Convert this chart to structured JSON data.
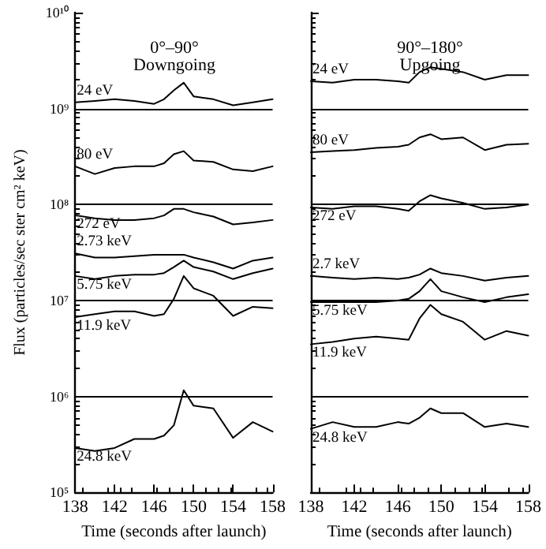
{
  "chart_data": [
    {
      "type": "line",
      "title": "0°–90°\nDowngoing",
      "xlabel": "Time (seconds after launch)",
      "ylabel": "Flux (particles/sec ster cm² keV)",
      "log": "y",
      "x": [
        138,
        140,
        142,
        144,
        146,
        147,
        148,
        149,
        150,
        152,
        154,
        156,
        158
      ],
      "xlim": [
        138,
        158
      ],
      "xticks": [
        138,
        142,
        146,
        150,
        154,
        158
      ],
      "ylim": [
        100000,
        10000000000
      ],
      "yticks": [
        {
          "value": 100000,
          "label": "10⁵"
        },
        {
          "value": 1000000,
          "label": "10⁶"
        },
        {
          "value": 10000000,
          "label": "10⁷"
        },
        {
          "value": 100000000,
          "label": "10⁸"
        },
        {
          "value": 1000000000,
          "label": "10⁹"
        },
        {
          "value": 10000000000,
          "label": "10¹⁰"
        }
      ],
      "ref_lines": [
        {
          "axis": "y",
          "value": 1000000,
          "color": "#000000"
        },
        {
          "axis": "y",
          "value": 10000000,
          "color": "#000000"
        },
        {
          "axis": "y",
          "value": 100000000,
          "color": "#000000"
        },
        {
          "axis": "y",
          "value": 1000000000,
          "color": "#000000"
        }
      ],
      "series": [
        {
          "name": "24 eV",
          "color": "#000000",
          "values": [
            1160000000.0,
            1200000000.0,
            1250000000.0,
            1200000000.0,
            1120000000.0,
            1250000000.0,
            1550000000.0,
            1860000000.0,
            1340000000.0,
            1250000000.0,
            1080000000.0,
            1160000000.0,
            1250000000.0
          ]
        },
        {
          "name": "80 eV",
          "color": "#000000",
          "values": [
            250000000.0,
            208000000.0,
            240000000.0,
            250000000.0,
            250000000.0,
            269000000.0,
            334000000.0,
            360000000.0,
            288000000.0,
            278000000.0,
            232000000.0,
            223000000.0,
            250000000.0
          ]
        },
        {
          "name": "272 eV",
          "color": "#000000",
          "values": [
            77000000.0,
            72000000.0,
            69000000.0,
            69000000.0,
            72000000.0,
            77000000.0,
            90000000.0,
            90000000.0,
            83000000.0,
            75000000.0,
            62000000.0,
            65000000.0,
            69000000.0
          ]
        },
        {
          "name": "2.73 keV",
          "color": "#000000",
          "values": [
            31000000.0,
            28000000.0,
            28000000.0,
            29000000.0,
            30000000.0,
            30000000.0,
            30000000.0,
            30000000.0,
            28000000.0,
            25000000.0,
            21500000.0,
            26000000.0,
            28000000.0
          ]
        },
        {
          "name": "5.75 keV",
          "color": "#000000",
          "values": [
            18000000.0,
            16700000.0,
            18000000.0,
            18600000.0,
            18600000.0,
            19300000.0,
            22300000.0,
            26000000.0,
            22300000.0,
            20000000.0,
            16700000.0,
            19300000.0,
            21500000.0
          ]
        },
        {
          "name": "11.9 keV",
          "color": "#000000",
          "values": [
            6700000.0,
            7200000.0,
            7700000.0,
            7700000.0,
            6900000.0,
            7200000.0,
            10400000.0,
            18000000.0,
            13400000.0,
            11200000.0,
            6900000.0,
            8600000.0,
            8300000.0
          ]
        },
        {
          "name": "24.8 keV",
          "color": "#000000",
          "values": [
            290000.0,
            270000.0,
            290000.0,
            360000.0,
            360000.0,
            390000.0,
            500000.0,
            1160000.0,
            800000.0,
            750000.0,
            370000.0,
            540000.0,
            430000.0
          ]
        }
      ]
    },
    {
      "type": "line",
      "title": "90°–180°\nUpgoing",
      "xlabel": "Time (seconds after launch)",
      "log": "y",
      "tick_labels": "x",
      "x": [
        138,
        140,
        142,
        144,
        146,
        147,
        148,
        149,
        150,
        152,
        154,
        156,
        158
      ],
      "xlim": [
        138,
        158
      ],
      "xticks": [
        138,
        142,
        146,
        150,
        154,
        158
      ],
      "ylim": [
        100000,
        10000000000
      ],
      "yticks": [
        100000,
        1000000,
        10000000,
        100000000,
        1000000000,
        10000000000
      ],
      "ref_lines": [
        {
          "axis": "y",
          "value": 1000000,
          "color": "#000000"
        },
        {
          "axis": "y",
          "value": 10000000,
          "color": "#000000"
        },
        {
          "axis": "y",
          "value": 100000000,
          "color": "#000000"
        },
        {
          "axis": "y",
          "value": 1000000000,
          "color": "#000000"
        }
      ],
      "series": [
        {
          "name": "24 eV",
          "color": "#000000",
          "values": [
            1930000000.0,
            1860000000.0,
            2000000000.0,
            2000000000.0,
            1930000000.0,
            1860000000.0,
            2400000000.0,
            2700000000.0,
            2600000000.0,
            2400000000.0,
            2000000000.0,
            2230000000.0,
            2230000000.0
          ]
        },
        {
          "name": "80 eV",
          "color": "#000000",
          "values": [
            350000000.0,
            360000000.0,
            370000000.0,
            390000000.0,
            400000000.0,
            420000000.0,
            500000000.0,
            540000000.0,
            480000000.0,
            500000000.0,
            370000000.0,
            420000000.0,
            430000000.0
          ]
        },
        {
          "name": "272 eV",
          "color": "#000000",
          "values": [
            93000000.0,
            90000000.0,
            96000000.0,
            96000000.0,
            90000000.0,
            86000000.0,
            108000000.0,
            125000000.0,
            116000000.0,
            104000000.0,
            90000000.0,
            93000000.0,
            100000000.0
          ]
        },
        {
          "name": "2.7 keV",
          "color": "#000000",
          "values": [
            18000000.0,
            17300000.0,
            16700000.0,
            17300000.0,
            16700000.0,
            17300000.0,
            18600000.0,
            21500000.0,
            19300000.0,
            18000000.0,
            16100000.0,
            17300000.0,
            18000000.0
          ]
        },
        {
          "name": "5.75 keV",
          "color": "#000000",
          "values": [
            9600000.0,
            9600000.0,
            9600000.0,
            9600000.0,
            10000000.0,
            10400000.0,
            12500000.0,
            16700000.0,
            12500000.0,
            10800000.0,
            9600000.0,
            10800000.0,
            11600000.0
          ]
        },
        {
          "name": "11.9 keV",
          "color": "#000000",
          "values": [
            3500000.0,
            3700000.0,
            4000000.0,
            4200000.0,
            4000000.0,
            3900000.0,
            6500000.0,
            9000000.0,
            7200000.0,
            6000000.0,
            3900000.0,
            4800000.0,
            4300000.0
          ]
        },
        {
          "name": "24.8 keV",
          "color": "#000000",
          "values": [
            460000.0,
            540000.0,
            480000.0,
            480000.0,
            540000.0,
            520000.0,
            600000.0,
            750000.0,
            670000.0,
            670000.0,
            480000.0,
            520000.0,
            480000.0
          ]
        }
      ]
    }
  ]
}
